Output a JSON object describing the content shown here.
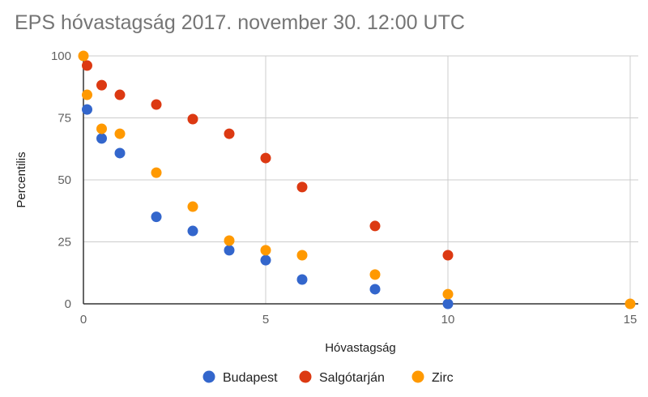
{
  "chart_data": {
    "type": "scatter",
    "title": "EPS hóvastagság 2017. november 30. 12:00 UTC",
    "xlabel": "Hóvastagság",
    "ylabel": "Percentilis",
    "xlim": [
      0,
      15
    ],
    "ylim": [
      0,
      100
    ],
    "x_ticks": [
      0,
      5,
      10,
      15
    ],
    "y_ticks": [
      0,
      25,
      50,
      75,
      100
    ],
    "grid": true,
    "legend_position": "bottom",
    "series": [
      {
        "name": "Budapest",
        "color": "#3366cc",
        "points": [
          [
            0.1,
            78.4
          ],
          [
            0.5,
            66.7
          ],
          [
            1,
            60.8
          ],
          [
            2,
            35.1
          ],
          [
            3,
            29.4
          ],
          [
            4,
            21.6
          ],
          [
            5,
            17.6
          ],
          [
            6,
            9.8
          ],
          [
            8,
            5.9
          ],
          [
            10,
            0
          ]
        ]
      },
      {
        "name": "Salgótarján",
        "color": "#dc3912",
        "points": [
          [
            0.1,
            96.1
          ],
          [
            0.5,
            88.2
          ],
          [
            1,
            84.3
          ],
          [
            2,
            80.4
          ],
          [
            3,
            74.5
          ],
          [
            4,
            68.6
          ],
          [
            5,
            58.8
          ],
          [
            6,
            47.1
          ],
          [
            8,
            31.4
          ],
          [
            10,
            19.6
          ]
        ]
      },
      {
        "name": "Zirc",
        "color": "#ff9900",
        "points": [
          [
            0,
            100
          ],
          [
            0.1,
            84.3
          ],
          [
            0.5,
            70.6
          ],
          [
            1,
            68.6
          ],
          [
            2,
            52.9
          ],
          [
            3,
            39.2
          ],
          [
            4,
            25.5
          ],
          [
            5,
            21.6
          ],
          [
            6,
            19.6
          ],
          [
            8,
            11.8
          ],
          [
            10,
            3.9
          ],
          [
            15,
            0
          ]
        ]
      }
    ]
  }
}
